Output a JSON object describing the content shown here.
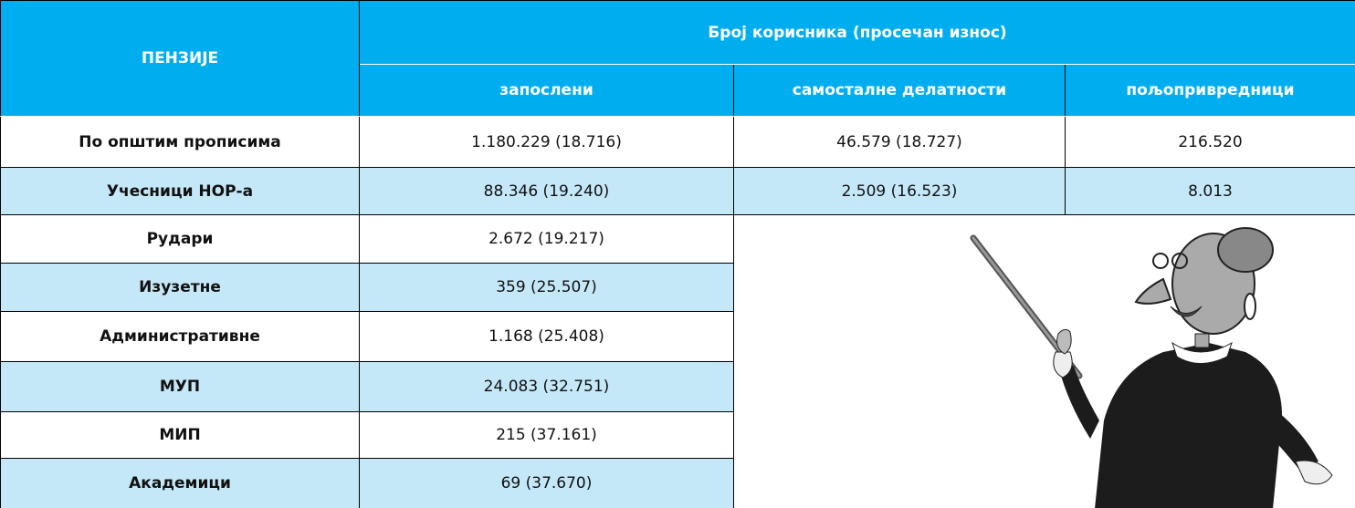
{
  "header": {
    "corner": "ПЕНЗИЈЕ",
    "group": "Број корисника (просечан износ)",
    "columns": [
      "запослени",
      "самосталне делатности",
      "пољопривредници"
    ]
  },
  "table": {
    "rows": [
      [
        "По општим прописима",
        "1.180.229 (18.716)",
        "46.579 (18.727)",
        "216.520"
      ],
      [
        "Учесници НОР-а",
        "88.346 (19.240)",
        "2.509 (16.523)",
        "8.013"
      ],
      [
        "Рудари",
        "2.672 (19.217)"
      ],
      [
        "Изузетне",
        "359 (25.507)"
      ],
      [
        "Административне",
        "1.168 (25.408)"
      ],
      [
        "МУП",
        "24.083 (32.751)"
      ],
      [
        "МИП",
        "215 (37.161)"
      ],
      [
        "Академици",
        "69 (37.670)"
      ]
    ]
  }
}
